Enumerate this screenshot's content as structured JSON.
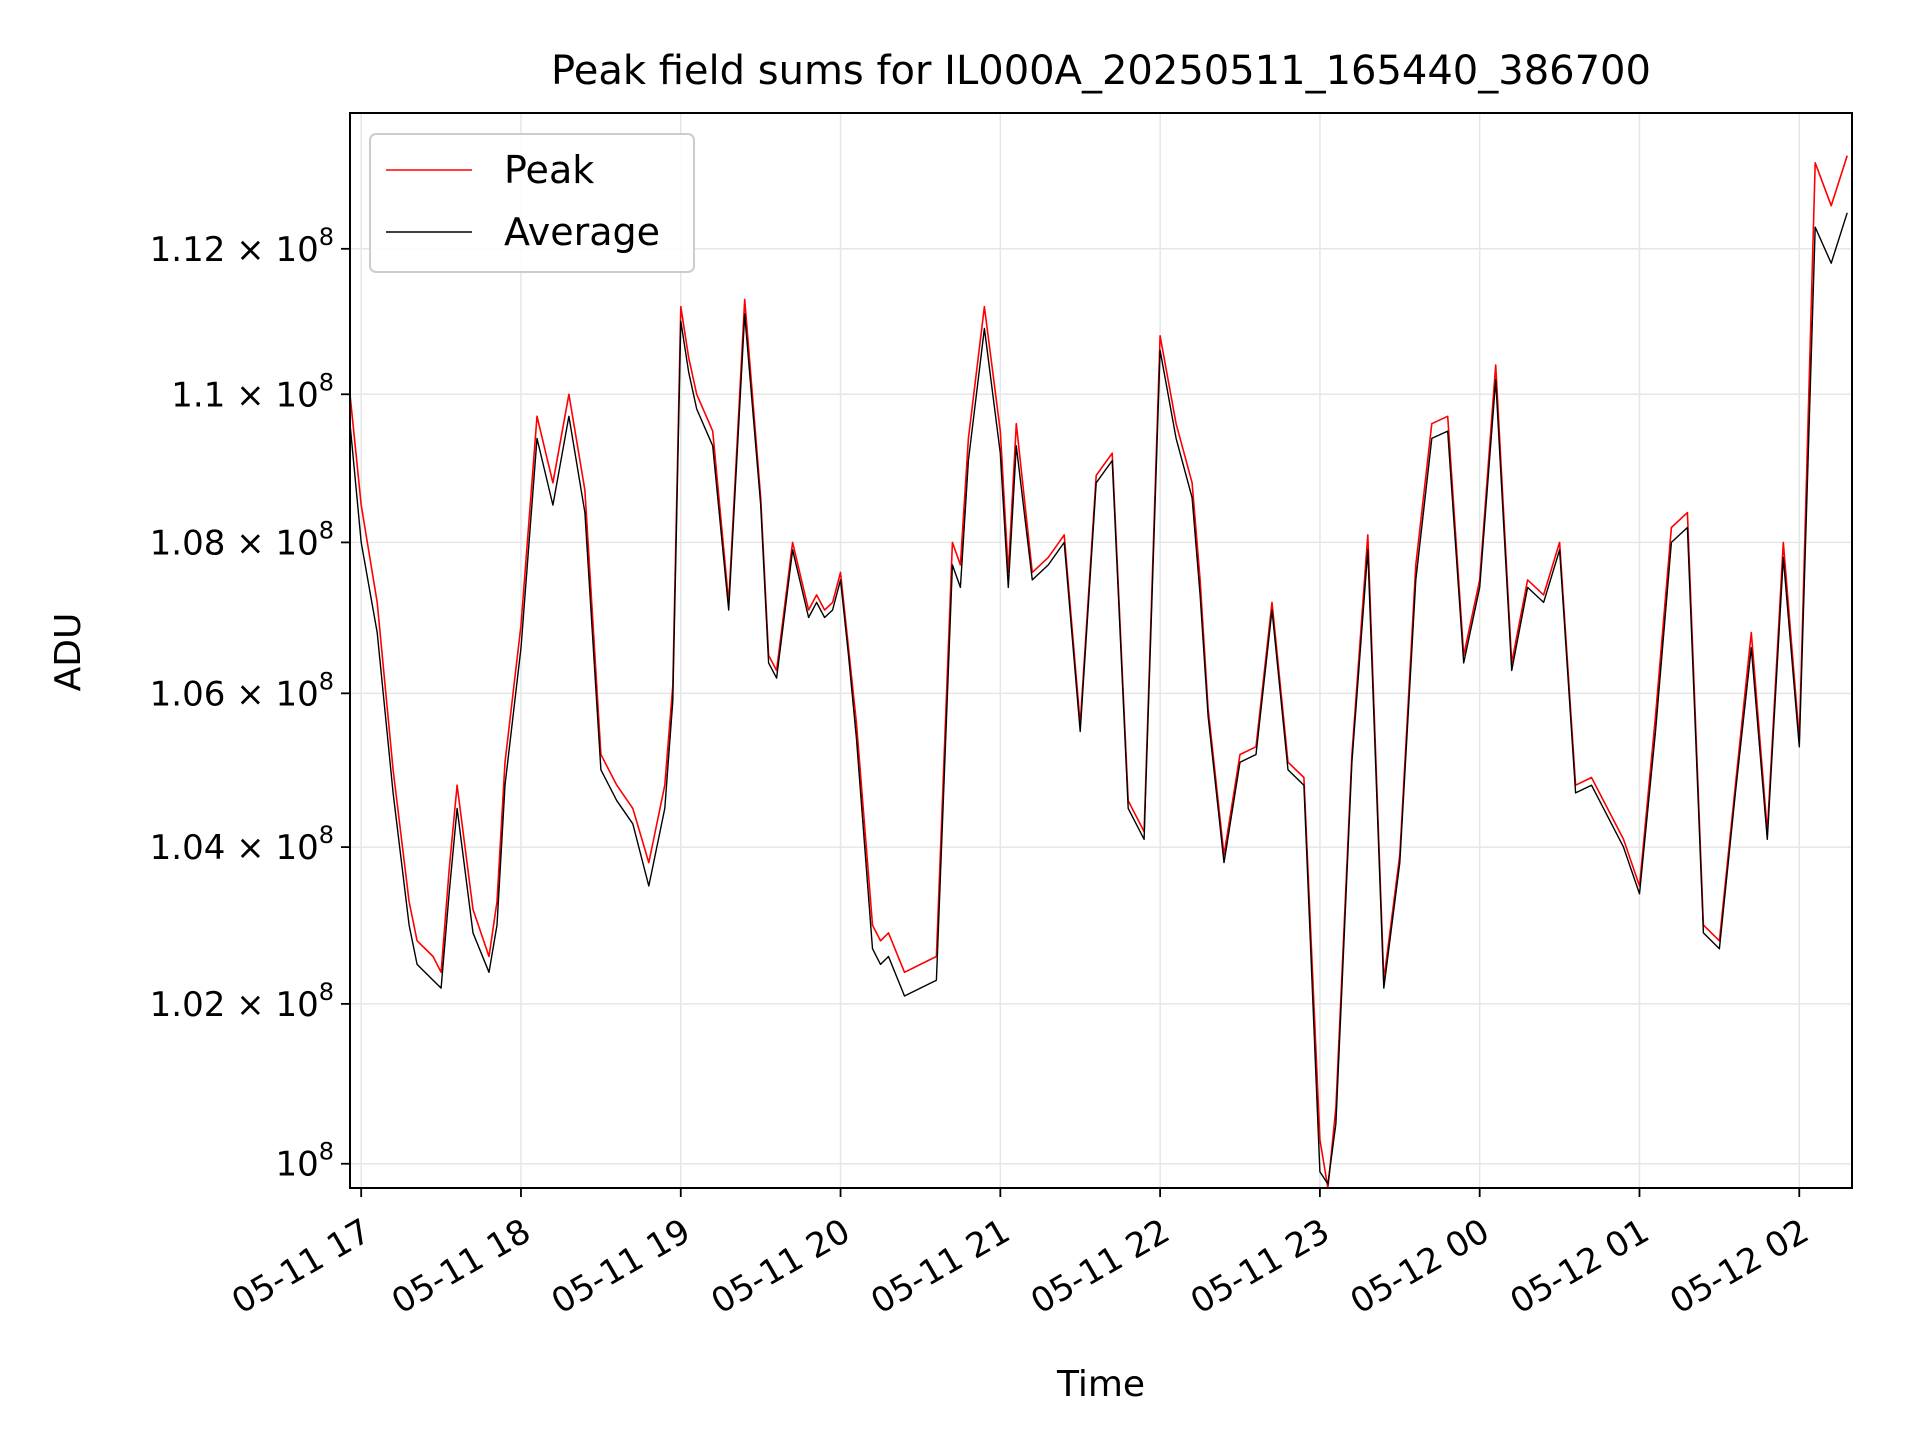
{
  "chart_data": {
    "type": "line",
    "title": "Peak field sums for IL000A_20250511_165440_386700",
    "xlabel": "Time",
    "ylabel": "ADU",
    "x_start": "05-11 16:54",
    "x_end": "05-12 02:20",
    "xlim": [
      "05-11 16:54",
      "05-12 02:20"
    ],
    "ylim": [
      99700000,
      113900000
    ],
    "y_scale": "log",
    "grid": true,
    "legend_position": "top-left",
    "x_ticks": [
      "05-11 17",
      "05-11 18",
      "05-11 19",
      "05-11 20",
      "05-11 21",
      "05-11 22",
      "05-11 23",
      "05-12 00",
      "05-12 01",
      "05-12 02"
    ],
    "y_ticks": [
      {
        "value": 100000000,
        "mant": "10",
        "exp": "8"
      },
      {
        "value": 102000000,
        "mant": "1.02 × 10",
        "exp": "8"
      },
      {
        "value": 104000000,
        "mant": "1.04 × 10",
        "exp": "8"
      },
      {
        "value": 106000000,
        "mant": "1.06 × 10",
        "exp": "8"
      },
      {
        "value": 108000000,
        "mant": "1.08 × 10",
        "exp": "8"
      },
      {
        "value": 110000000,
        "mant": "1.1 × 10",
        "exp": "8"
      },
      {
        "value": 112000000,
        "mant": "1.12 × 10",
        "exp": "8"
      }
    ],
    "series": [
      {
        "name": "Peak",
        "color": "#ff0000",
        "x_hours": [
          16.93,
          17.0,
          17.1,
          17.2,
          17.3,
          17.35,
          17.45,
          17.5,
          17.55,
          17.6,
          17.7,
          17.8,
          17.85,
          17.9,
          18.0,
          18.1,
          18.2,
          18.3,
          18.4,
          18.5,
          18.6,
          18.7,
          18.8,
          18.9,
          18.95,
          19.0,
          19.05,
          19.1,
          19.2,
          19.3,
          19.4,
          19.5,
          19.55,
          19.6,
          19.7,
          19.8,
          19.85,
          19.9,
          19.95,
          20.0,
          20.05,
          20.1,
          20.2,
          20.25,
          20.3,
          20.4,
          20.5,
          20.6,
          20.7,
          20.75,
          20.8,
          20.9,
          21.0,
          21.05,
          21.1,
          21.2,
          21.3,
          21.4,
          21.5,
          21.6,
          21.7,
          21.8,
          21.9,
          22.0,
          22.1,
          22.2,
          22.25,
          22.3,
          22.4,
          22.5,
          22.6,
          22.7,
          22.8,
          22.9,
          23.0,
          23.05,
          23.1,
          23.2,
          23.3,
          23.4,
          23.5,
          23.6,
          23.7,
          23.8,
          23.9,
          24.0,
          24.1,
          24.2,
          24.3,
          24.4,
          24.5,
          24.6,
          24.7,
          24.8,
          24.9,
          25.0,
          25.1,
          25.2,
          25.3,
          25.4,
          25.5,
          25.6,
          25.7,
          25.8,
          25.9,
          26.0,
          26.1,
          26.2,
          26.3
        ],
        "values": [
          110000000,
          108500000,
          107200000,
          105000000,
          103300000,
          102800000,
          102600000,
          102400000,
          103700000,
          104800000,
          103200000,
          102600000,
          103300000,
          105100000,
          106900000,
          109700000,
          108800000,
          110000000,
          108700000,
          105200000,
          104800000,
          104500000,
          103800000,
          104800000,
          106100000,
          111200000,
          110500000,
          110000000,
          109500000,
          107200000,
          111300000,
          108600000,
          106500000,
          106300000,
          108000000,
          107100000,
          107300000,
          107100000,
          107200000,
          107600000,
          106600000,
          105600000,
          103000000,
          102800000,
          102900000,
          102400000,
          102500000,
          102600000,
          108000000,
          107700000,
          109400000,
          111200000,
          109500000,
          107600000,
          109600000,
          107600000,
          107800000,
          108100000,
          105600000,
          108900000,
          109200000,
          104600000,
          104200000,
          110800000,
          109600000,
          108800000,
          107500000,
          105800000,
          103900000,
          105200000,
          105300000,
          107200000,
          105100000,
          104900000,
          100300000,
          99700000,
          100700000,
          105200000,
          108100000,
          102300000,
          103900000,
          107700000,
          109600000,
          109700000,
          106500000,
          107500000,
          110400000,
          106400000,
          107500000,
          107300000,
          108000000,
          104800000,
          104900000,
          104500000,
          104100000,
          103500000,
          105700000,
          108200000,
          108400000,
          103000000,
          102800000,
          104800000,
          106800000,
          104200000,
          108000000,
          105400000,
          113200000,
          112600000,
          113300000
        ]
      },
      {
        "name": "Average",
        "color": "#000000",
        "x_hours": [
          16.93,
          17.0,
          17.1,
          17.2,
          17.3,
          17.35,
          17.45,
          17.5,
          17.55,
          17.6,
          17.7,
          17.8,
          17.85,
          17.9,
          18.0,
          18.1,
          18.2,
          18.3,
          18.4,
          18.5,
          18.6,
          18.7,
          18.8,
          18.9,
          18.95,
          19.0,
          19.05,
          19.1,
          19.2,
          19.3,
          19.4,
          19.5,
          19.55,
          19.6,
          19.7,
          19.8,
          19.85,
          19.9,
          19.95,
          20.0,
          20.05,
          20.1,
          20.2,
          20.25,
          20.3,
          20.4,
          20.5,
          20.6,
          20.7,
          20.75,
          20.8,
          20.9,
          21.0,
          21.05,
          21.1,
          21.2,
          21.3,
          21.4,
          21.5,
          21.6,
          21.7,
          21.8,
          21.9,
          22.0,
          22.1,
          22.2,
          22.25,
          22.3,
          22.4,
          22.5,
          22.6,
          22.7,
          22.8,
          22.9,
          23.0,
          23.05,
          23.1,
          23.2,
          23.3,
          23.4,
          23.5,
          23.6,
          23.7,
          23.8,
          23.9,
          24.0,
          24.1,
          24.2,
          24.3,
          24.4,
          24.5,
          24.6,
          24.7,
          24.8,
          24.9,
          25.0,
          25.1,
          25.2,
          25.3,
          25.4,
          25.5,
          25.6,
          25.7,
          25.8,
          25.9,
          26.0,
          26.1,
          26.2,
          26.3
        ],
        "values": [
          109600000,
          108000000,
          106800000,
          104700000,
          103000000,
          102500000,
          102300000,
          102200000,
          103400000,
          104500000,
          102900000,
          102400000,
          103000000,
          104800000,
          106600000,
          109400000,
          108500000,
          109700000,
          108400000,
          105000000,
          104600000,
          104300000,
          103500000,
          104500000,
          105900000,
          111000000,
          110300000,
          109800000,
          109300000,
          107100000,
          111100000,
          108500000,
          106400000,
          106200000,
          107900000,
          107000000,
          107200000,
          107000000,
          107100000,
          107500000,
          106500000,
          105400000,
          102700000,
          102500000,
          102600000,
          102100000,
          102200000,
          102300000,
          107700000,
          107400000,
          109100000,
          110900000,
          109200000,
          107400000,
          109300000,
          107500000,
          107700000,
          108000000,
          105500000,
          108800000,
          109100000,
          104500000,
          104100000,
          110600000,
          109400000,
          108600000,
          107300000,
          105700000,
          103800000,
          105100000,
          105200000,
          107100000,
          105000000,
          104800000,
          99900000,
          99750000,
          100500000,
          105100000,
          107900000,
          102200000,
          103800000,
          107500000,
          109400000,
          109500000,
          106400000,
          107400000,
          110200000,
          106300000,
          107400000,
          107200000,
          107900000,
          104700000,
          104800000,
          104400000,
          104000000,
          103400000,
          105500000,
          108000000,
          108200000,
          102900000,
          102700000,
          104700000,
          106600000,
          104100000,
          107800000,
          105300000,
          112300000,
          111800000,
          112500000
        ]
      }
    ]
  }
}
